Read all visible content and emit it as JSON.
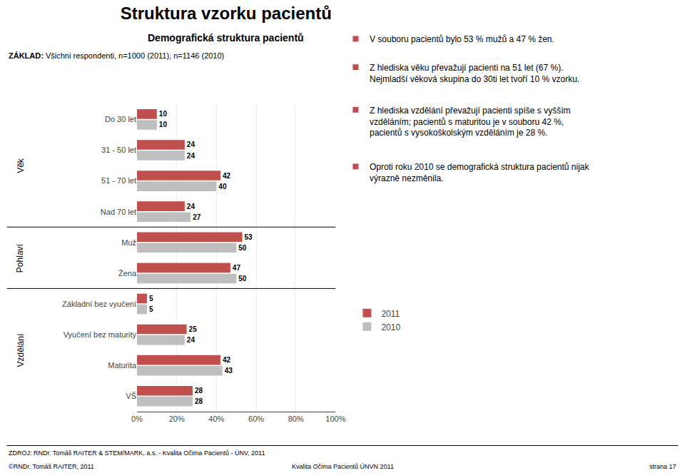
{
  "chart_data": {
    "type": "bar",
    "orientation": "horizontal",
    "title": "Struktura vzorku pacientů",
    "subtitle": "Demografická struktura pacientů",
    "base_label": "ZÁKLAD:",
    "base_text": "Všichni respondenti, n=1000 (2011), n=1146 (2010)",
    "categories": [
      "Do 30 let",
      "31 - 50 let",
      "51 - 70 let",
      "Nad 70 let",
      "Muž",
      "Žena",
      "Základní bez vyučení",
      "Vyučení bez maturity",
      "Maturita",
      "VŠ"
    ],
    "series": [
      {
        "name": "2011",
        "color": "#c0504d",
        "values": [
          10,
          24,
          42,
          24,
          53,
          47,
          5,
          25,
          42,
          28
        ]
      },
      {
        "name": "2010",
        "color": "#bfbfbf",
        "values": [
          10,
          24,
          40,
          27,
          50,
          50,
          5,
          24,
          43,
          28
        ]
      }
    ],
    "groups": [
      {
        "label": "Věk",
        "categories": [
          "Do 30 let",
          "31 - 50 let",
          "51 - 70 let",
          "Nad 70 let"
        ]
      },
      {
        "label": "Pohlaví",
        "categories": [
          "Muž",
          "Žena"
        ]
      },
      {
        "label": "Vzdělání",
        "categories": [
          "Základní bez vyučení",
          "Vyučení bez maturity",
          "Maturita",
          "VŠ"
        ]
      }
    ],
    "xlim": [
      0,
      100
    ],
    "xticks": [
      {
        "value": 0,
        "label": "0%"
      },
      {
        "value": 20,
        "label": "20%"
      },
      {
        "value": 40,
        "label": "40%"
      },
      {
        "value": 60,
        "label": "60%"
      },
      {
        "value": 80,
        "label": "80%"
      },
      {
        "value": 100,
        "label": "100%"
      }
    ],
    "grid": true,
    "legend": "right",
    "data_labels": true,
    "notes": [
      "V souboru pacientů bylo 53 % mužů a 47 % žen.",
      "Z hlediska věku převažují pacienti na 51 let (67 %).\nNejmladší věková skupina do 30ti let tvoří 10 % vzorku.",
      "Z hlediska vzdělání převažují pacienti spíše s vyšším\nvzděláním; pacientů s maturitou je v souboru 42 %,\npacientů s vysokoškolským vzděláním je 28 %.",
      "Oproti roku 2010 se demografická struktura pacientů nijak\nvýrazně nezměnila."
    ],
    "source": "ZDROJ: RNDr. Tomáš RAITER & STEM/MARK, a.s. - Kvalita Očima Pacientů - ÚNV, 2011",
    "footer": [
      "©RNDr. Tomáš RAITER, 2011",
      "Kvalita Očima Pacientů ÚNVN 2011",
      "strana 17"
    ]
  }
}
